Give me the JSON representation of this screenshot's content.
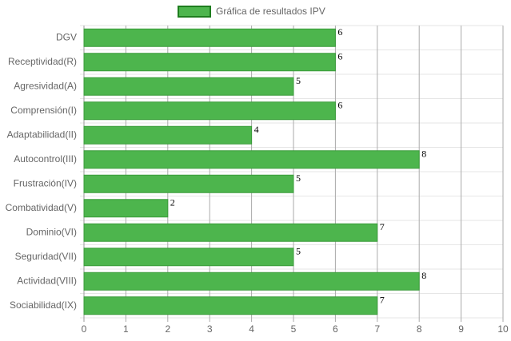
{
  "chart_data": {
    "type": "bar",
    "orientation": "horizontal",
    "legend": "Gráfica de resultados IPV",
    "categories": [
      "DGV",
      "Receptividad(R)",
      "Agresividad(A)",
      "Comprensión(I)",
      "Adaptabilidad(II)",
      "Autocontrol(III)",
      "Frustración(IV)",
      "Combatividad(V)",
      "Dominio(VI)",
      "Seguridad(VII)",
      "Actividad(VIII)",
      "Sociabilidad(IX)"
    ],
    "values": [
      6,
      6,
      5,
      6,
      4,
      8,
      5,
      2,
      7,
      5,
      8,
      7
    ],
    "color": "#4db54d",
    "xlim": [
      0,
      10
    ],
    "xticks": [
      0,
      1,
      2,
      3,
      4,
      5,
      6,
      7,
      8,
      9,
      10
    ],
    "grid": true
  }
}
